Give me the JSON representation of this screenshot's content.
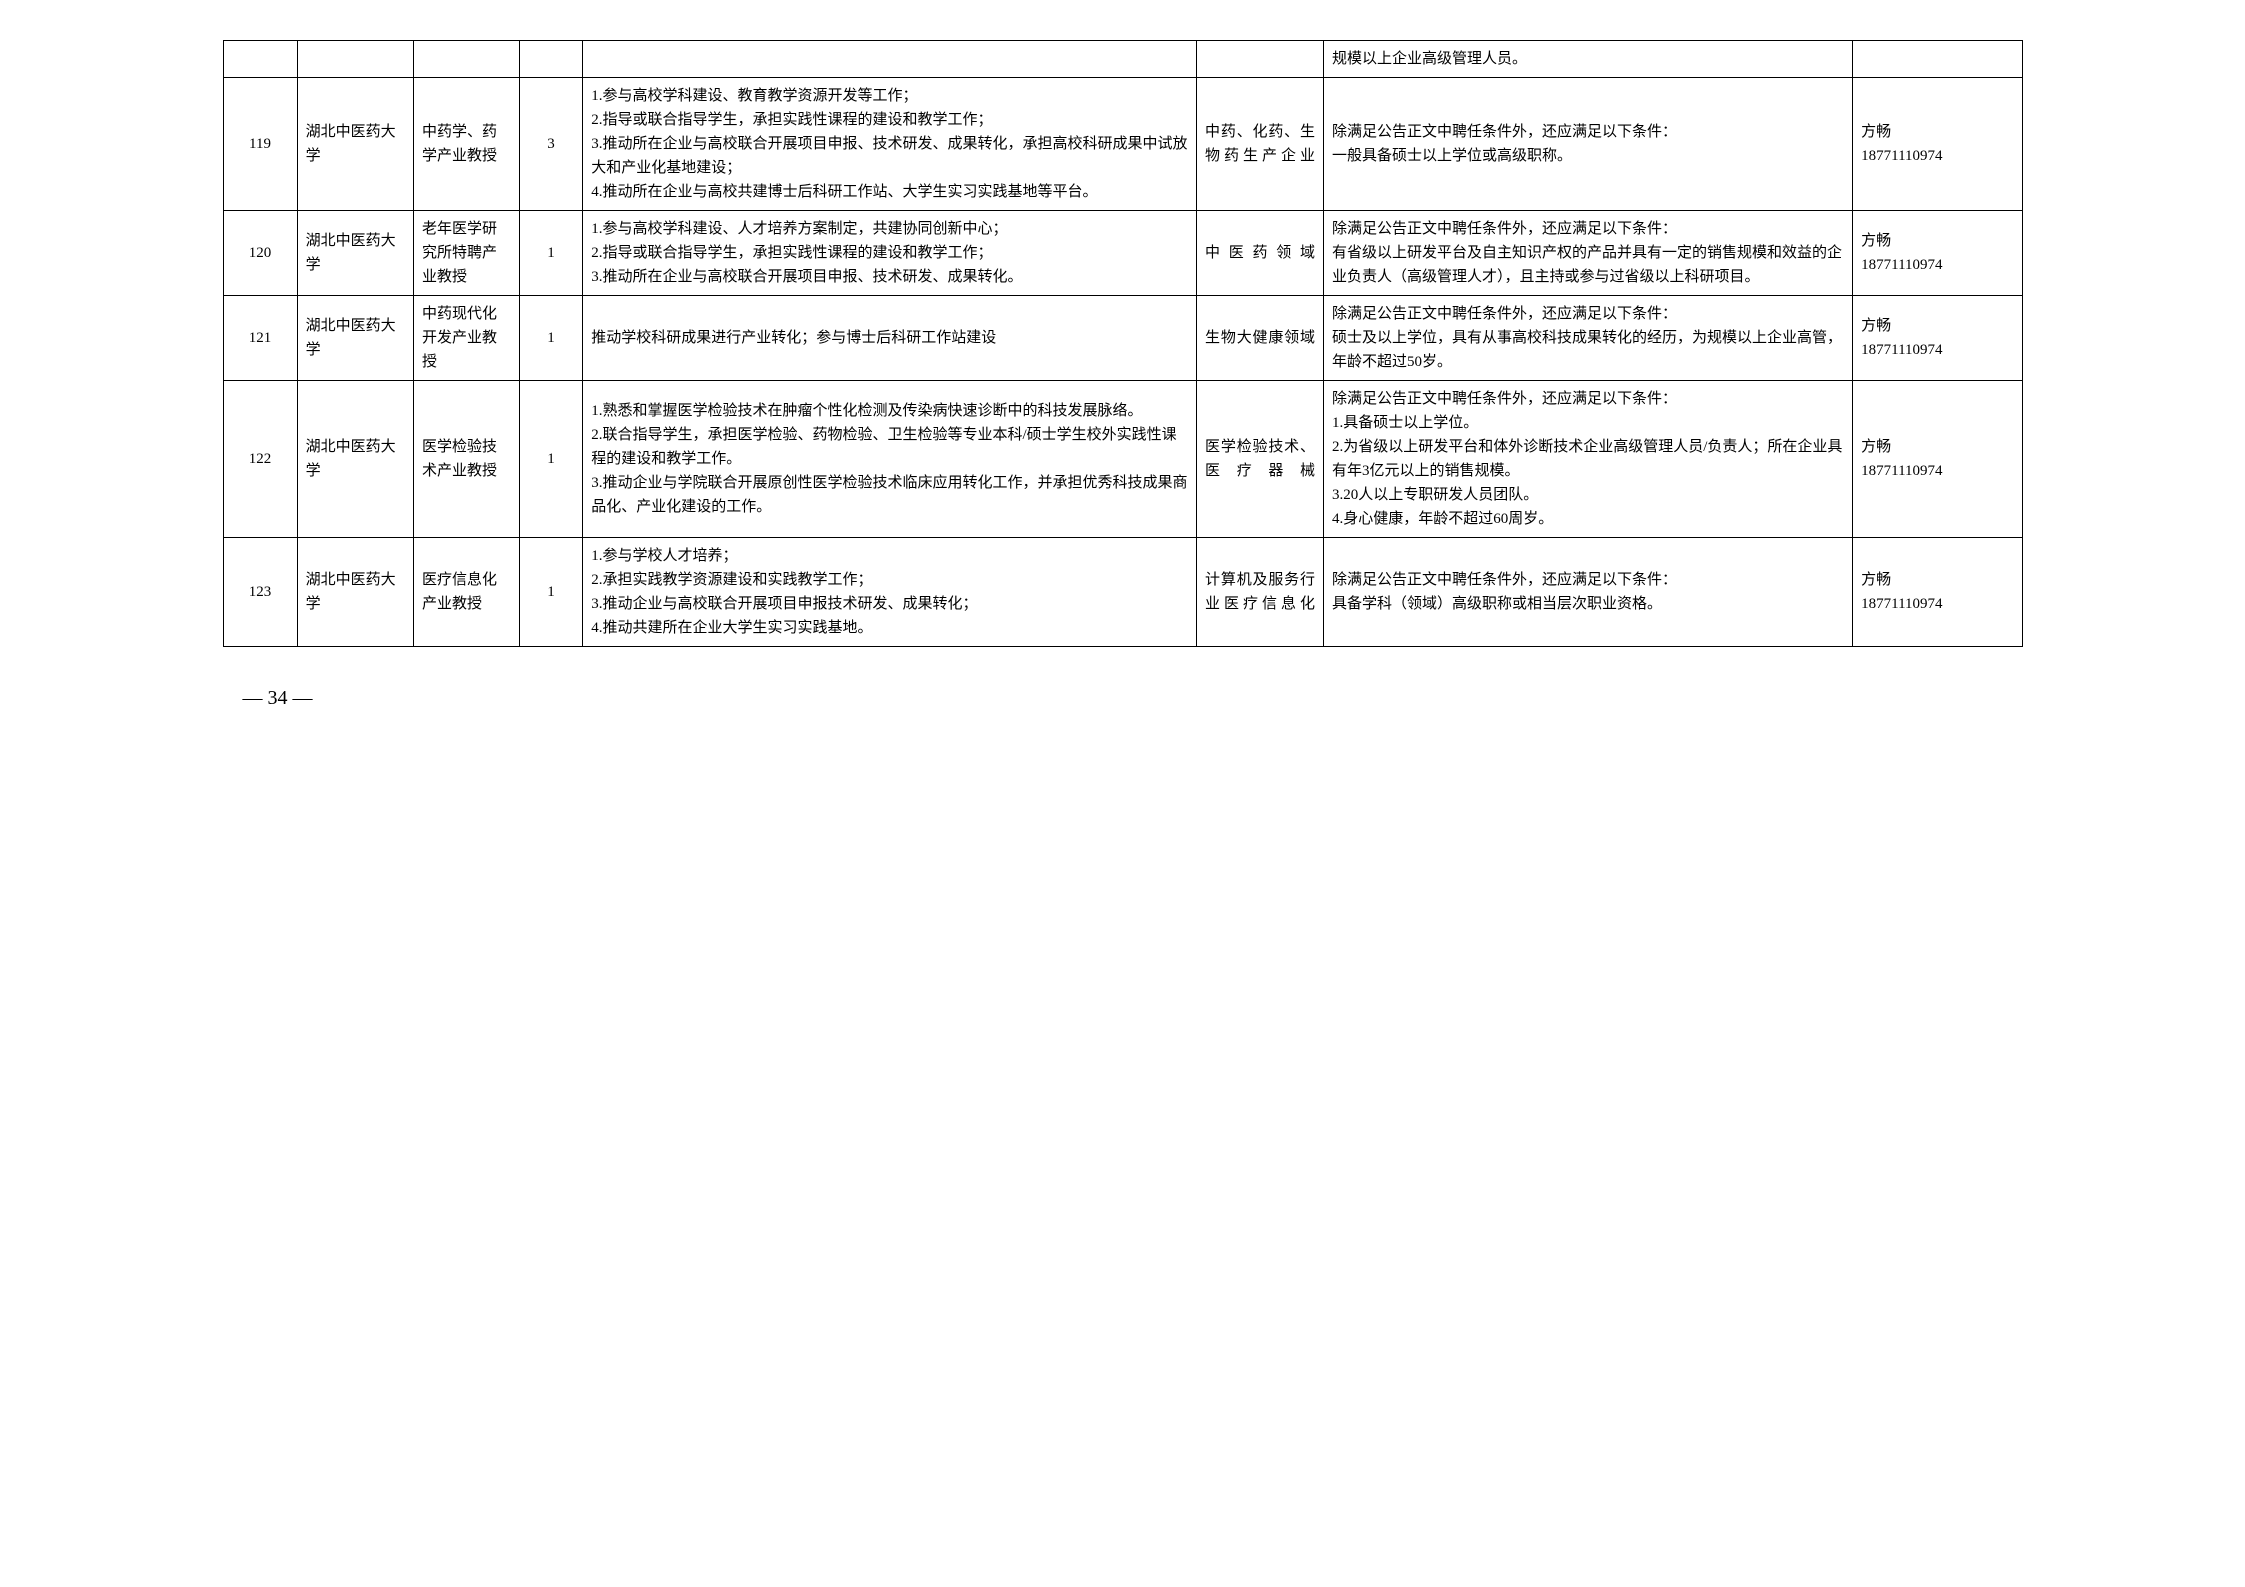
{
  "table": {
    "rows": [
      {
        "id": "",
        "university": "",
        "position": "",
        "count": "",
        "duties": "",
        "field": "",
        "requirements": "规模以上企业高级管理人员。",
        "contact": ""
      },
      {
        "id": "119",
        "university": "湖北中医药大学",
        "position": "中药学、药学产业教授",
        "count": "3",
        "duties": "1.参与高校学科建设、教育教学资源开发等工作；\n2.指导或联合指导学生，承担实践性课程的建设和教学工作；\n3.推动所在企业与高校联合开展项目申报、技术研发、成果转化，承担高校科研成果中试放大和产业化基地建设；\n4.推动所在企业与高校共建博士后科研工作站、大学生实习实践基地等平台。",
        "field": "中药、化药、生物药生产企业",
        "requirements": "除满足公告正文中聘任条件外，还应满足以下条件：\n一般具备硕士以上学位或高级职称。",
        "contact": "方畅\n18771110974"
      },
      {
        "id": "120",
        "university": "湖北中医药大学",
        "position": "老年医学研究所特聘产业教授",
        "count": "1",
        "duties": "1.参与高校学科建设、人才培养方案制定，共建协同创新中心；\n2.指导或联合指导学生，承担实践性课程的建设和教学工作；\n3.推动所在企业与高校联合开展项目申报、技术研发、成果转化。",
        "field": "中医药领域",
        "requirements": "除满足公告正文中聘任条件外，还应满足以下条件：\n有省级以上研发平台及自主知识产权的产品并具有一定的销售规模和效益的企业负责人（高级管理人才），且主持或参与过省级以上科研项目。",
        "contact": "方畅\n18771110974"
      },
      {
        "id": "121",
        "university": "湖北中医药大学",
        "position": "中药现代化开发产业教授",
        "count": "1",
        "duties": "推动学校科研成果进行产业转化；参与博士后科研工作站建设",
        "field": "生物大健康领域",
        "requirements": "除满足公告正文中聘任条件外，还应满足以下条件：\n硕士及以上学位，具有从事高校科技成果转化的经历，为规模以上企业高管，年龄不超过50岁。",
        "contact": "方畅\n18771110974"
      },
      {
        "id": "122",
        "university": "湖北中医药大学",
        "position": "医学检验技术产业教授",
        "count": "1",
        "duties": "1.熟悉和掌握医学检验技术在肿瘤个性化检测及传染病快速诊断中的科技发展脉络。\n2.联合指导学生，承担医学检验、药物检验、卫生检验等专业本科/硕士学生校外实践性课程的建设和教学工作。\n3.推动企业与学院联合开展原创性医学检验技术临床应用转化工作，并承担优秀科技成果商品化、产业化建设的工作。",
        "field": "医学检验技术、医疗器械",
        "requirements": "除满足公告正文中聘任条件外，还应满足以下条件：\n1.具备硕士以上学位。\n2.为省级以上研发平台和体外诊断技术企业高级管理人员/负责人；所在企业具有年3亿元以上的销售规模。\n3.20人以上专职研发人员团队。\n4.身心健康，年龄不超过60周岁。",
        "contact": "方畅\n18771110974"
      },
      {
        "id": "123",
        "university": "湖北中医药大学",
        "position": "医疗信息化产业教授",
        "count": "1",
        "duties": "1.参与学校人才培养；\n2.承担实践教学资源建设和实践教学工作；\n3.推动企业与高校联合开展项目申报技术研发、成果转化；\n4.推动共建所在企业大学生实习实践基地。",
        "field": "计算机及服务行业医疗信息化",
        "requirements": "除满足公告正文中聘任条件外，还应满足以下条件：\n具备学科（领域）高级职称或相当层次职业资格。",
        "contact": "方畅\n18771110974"
      }
    ]
  },
  "pageNumber": "— 34 —"
}
